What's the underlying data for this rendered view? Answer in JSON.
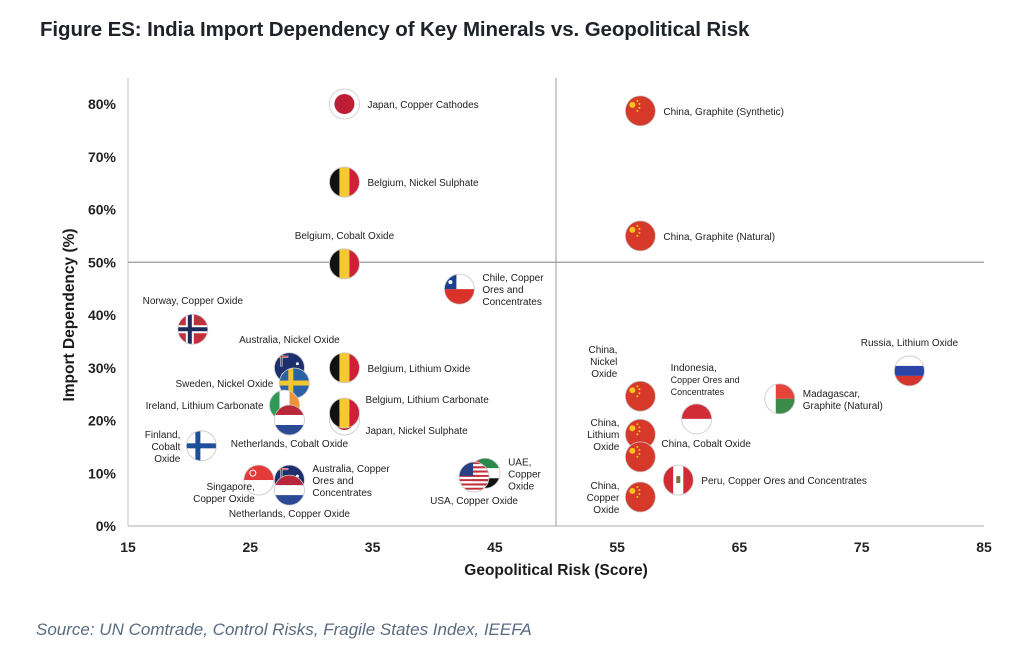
{
  "title": "Figure ES: India Import Dependency of Key Minerals vs. Geopolitical Risk",
  "source": "Source: UN Comtrade, Control Risks, Fragile States Index, IEEFA",
  "chart_data": {
    "type": "scatter",
    "title": "Figure ES: India Import Dependency of Key Minerals vs. Geopolitical Risk",
    "xlabel": "Geopolitical Risk (Score)",
    "ylabel": "Import Dependency  (%)",
    "xlim": [
      15,
      85
    ],
    "ylim": [
      0,
      80
    ],
    "xticks": [
      15,
      25,
      35,
      45,
      55,
      65,
      75,
      85
    ],
    "yticks": [
      0,
      10,
      20,
      30,
      40,
      50,
      60,
      70,
      80
    ],
    "ytick_labels": [
      "0%",
      "10%",
      "20%",
      "30%",
      "40%",
      "50%",
      "60%",
      "70%",
      "80%"
    ],
    "quadrant_lines": {
      "x": 50,
      "y": 50
    },
    "grid": false,
    "legend": "none",
    "marker": "country-flag",
    "points": [
      {
        "country": "Japan",
        "mineral": "Copper Cathodes",
        "label": [
          "Japan, Copper Cathodes"
        ],
        "x": 32.7,
        "y": 80,
        "flag": "japan",
        "lpos": "right"
      },
      {
        "country": "Belgium",
        "mineral": "Nickel Sulphate",
        "label": [
          "Belgium, Nickel Sulphate"
        ],
        "x": 32.7,
        "y": 65.2,
        "flag": "belgium",
        "lpos": "right"
      },
      {
        "country": "Belgium",
        "mineral": "Cobalt Oxide",
        "label": [
          "Belgium, Cobalt Oxide"
        ],
        "x": 32.7,
        "y": 49.7,
        "flag": "belgium",
        "lpos": "above"
      },
      {
        "country": "Chile",
        "mineral": "Copper Ores and Concentrates",
        "label": [
          "Chile, Copper",
          "Ores and",
          "Concentrates"
        ],
        "x": 42.1,
        "y": 44.9,
        "flag": "chile",
        "lpos": "right"
      },
      {
        "country": "Norway",
        "mineral": "Copper Oxide",
        "label": [
          "Norway, Copper Oxide"
        ],
        "x": 20.3,
        "y": 37.3,
        "flag": "norway",
        "lpos": "above"
      },
      {
        "country": "Australia",
        "mineral": "Nickel Oxide",
        "label": [
          "Australia, Nickel Oxide"
        ],
        "x": 28.2,
        "y": 30.0,
        "flag": "australia",
        "lpos": "above"
      },
      {
        "country": "Sweden",
        "mineral": "Nickel Oxide",
        "label": [
          "Sweden, Nickel Oxide"
        ],
        "x": 28.6,
        "y": 27.1,
        "flag": "sweden",
        "lpos": "left"
      },
      {
        "country": "Belgium",
        "mineral": "Lithium Oxide",
        "label": [
          "Belgium, Lithium Oxide"
        ],
        "x": 32.7,
        "y": 30.0,
        "flag": "belgium",
        "lpos": "right"
      },
      {
        "country": "Ireland",
        "mineral": "Lithium Carbonate",
        "label": [
          "Ireland, Lithium Carbonate"
        ],
        "x": 27.8,
        "y": 22.9,
        "flag": "ireland",
        "lpos": "left"
      },
      {
        "country": "Japan",
        "mineral": "Nickel Sulphate",
        "label": [
          "Japan, Nickel Sulphate"
        ],
        "x": 32.7,
        "y": 20.1,
        "flag": "japan",
        "lpos": "below-right"
      },
      {
        "country": "Belgium",
        "mineral": "Lithium Carbonate",
        "label": [
          "Belgium, Lithium Carbonate"
        ],
        "x": 32.7,
        "y": 21.4,
        "flag": "belgium",
        "lpos": "above-right"
      },
      {
        "country": "Netherlands",
        "mineral": "Cobalt Oxide",
        "label": [
          "Netherlands, Cobalt Oxide"
        ],
        "x": 28.2,
        "y": 20.1,
        "flag": "netherlands",
        "lpos": "below"
      },
      {
        "country": "Finland",
        "mineral": "Cobalt Oxide",
        "label": [
          "Finland,",
          "Cobalt",
          "Oxide"
        ],
        "x": 21.0,
        "y": 15.2,
        "flag": "finland",
        "lpos": "left"
      },
      {
        "country": "Singapore",
        "mineral": "Copper Oxide",
        "label": [
          "Singapore,",
          "Copper Oxide"
        ],
        "x": 25.7,
        "y": 8.7,
        "flag": "singapore",
        "lpos": "below-left"
      },
      {
        "country": "Australia",
        "mineral": "Copper Ores and Concentrates",
        "label": [
          "Australia, Copper",
          "Ores and",
          "Concentrates"
        ],
        "x": 28.2,
        "y": 8.7,
        "flag": "australia",
        "lpos": "right"
      },
      {
        "country": "Netherlands",
        "mineral": "Copper Oxide",
        "label": [
          "Netherlands, Copper Oxide"
        ],
        "x": 28.2,
        "y": 6.8,
        "flag": "netherlands",
        "lpos": "below"
      },
      {
        "country": "UAE",
        "mineral": "Copper Oxide",
        "label": [
          "UAE,",
          "Copper",
          "Oxide"
        ],
        "x": 44.2,
        "y": 10.0,
        "flag": "uae",
        "lpos": "right"
      },
      {
        "country": "USA",
        "mineral": "Copper Oxide",
        "label": [
          "USA, Copper Oxide"
        ],
        "x": 43.3,
        "y": 9.3,
        "flag": "usa",
        "lpos": "below"
      },
      {
        "country": "China",
        "mineral": "Graphite (Synthetic)",
        "label": [
          "China, Graphite (Synthetic)"
        ],
        "x": 56.9,
        "y": 78.7,
        "flag": "china",
        "lpos": "right"
      },
      {
        "country": "China",
        "mineral": "Graphite (Natural)",
        "label": [
          "China, Graphite (Natural)"
        ],
        "x": 56.9,
        "y": 55.0,
        "flag": "china",
        "lpos": "right"
      },
      {
        "country": "China",
        "mineral": "Nickel Oxide",
        "label": [
          "China,",
          "Nickel",
          "Oxide"
        ],
        "x": 56.9,
        "y": 24.6,
        "flag": "china",
        "lpos": "above-left"
      },
      {
        "country": "China",
        "mineral": "Lithium Oxide",
        "label": [
          "China,",
          "Lithium",
          "Oxide"
        ],
        "x": 56.9,
        "y": 17.4,
        "flag": "china",
        "lpos": "left"
      },
      {
        "country": "China",
        "mineral": "Cobalt Oxide",
        "label": [
          "China, Cobalt Oxide"
        ],
        "x": 56.9,
        "y": 13.1,
        "flag": "china",
        "lpos": "above-right"
      },
      {
        "country": "China",
        "mineral": "Copper Oxide",
        "label": [
          "China,",
          "Copper",
          "Oxide"
        ],
        "x": 56.9,
        "y": 5.5,
        "flag": "china",
        "lpos": "left"
      },
      {
        "country": "Indonesia",
        "mineral": "Copper Ores and Concentrates",
        "label": [
          "Indonesia,",
          "Copper Ores and",
          "Concentrates"
        ],
        "x": 61.5,
        "y": 20.3,
        "flag": "indonesia",
        "lpos": "above"
      },
      {
        "country": "Peru",
        "mineral": "Copper Ores and Concentrates",
        "label": [
          "Peru, Copper Ores and Concentrates"
        ],
        "x": 60.0,
        "y": 8.7,
        "flag": "peru",
        "lpos": "right"
      },
      {
        "country": "Madagascar",
        "mineral": "Graphite (Natural)",
        "label": [
          "Madagascar,",
          "Graphite (Natural)"
        ],
        "x": 68.3,
        "y": 24.1,
        "flag": "madagascar",
        "lpos": "right"
      },
      {
        "country": "Russia",
        "mineral": "Lithium Oxide",
        "label": [
          "Russia, Lithium Oxide"
        ],
        "x": 78.9,
        "y": 29.4,
        "flag": "russia",
        "lpos": "above"
      }
    ]
  }
}
